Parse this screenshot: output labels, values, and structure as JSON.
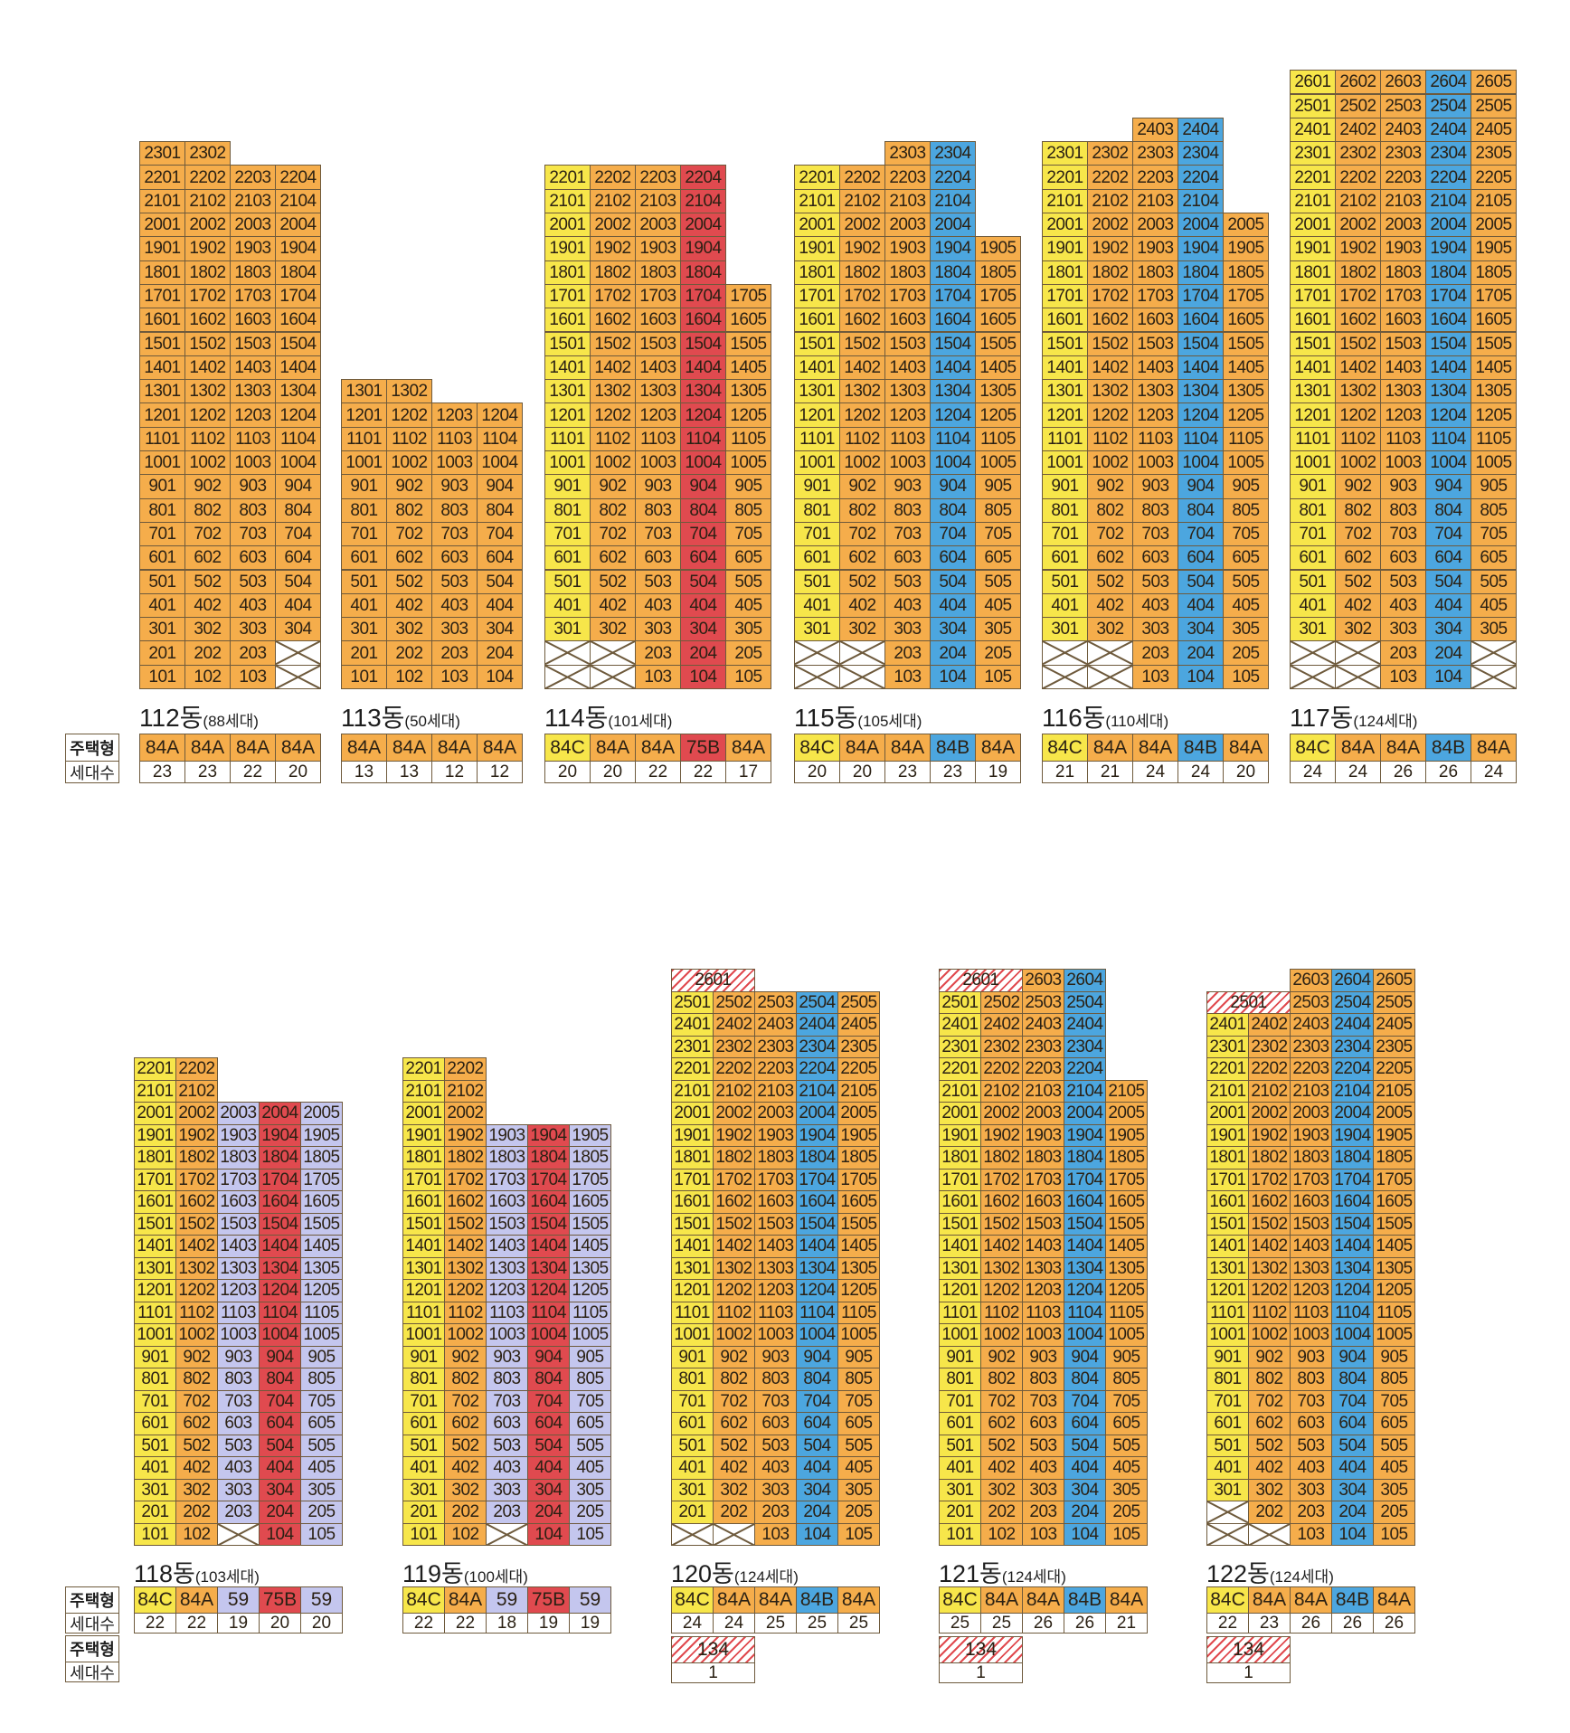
{
  "colors": {
    "84A": "#f5ad4b",
    "84B": "#4ca6df",
    "84C": "#f7e64a",
    "75B": "#e04a4f",
    "59": "#c4c6ee",
    "134": "#e04a4f"
  },
  "row_labels": {
    "type": "주택형",
    "count": "세대수"
  },
  "buildings": [
    {
      "id": "112",
      "name": "112동",
      "households": "(88세대)",
      "lines": [
        {
          "type": "84A",
          "count": "23",
          "floors": [
            1,
            23
          ]
        },
        {
          "type": "84A",
          "count": "23",
          "floors": [
            1,
            23
          ]
        },
        {
          "type": "84A",
          "count": "22",
          "floors": [
            1,
            22
          ]
        },
        {
          "type": "84A",
          "count": "20",
          "floors": [
            3,
            22
          ],
          "crossed": [
            1,
            2
          ]
        }
      ]
    },
    {
      "id": "113",
      "name": "113동",
      "households": "(50세대)",
      "lines": [
        {
          "type": "84A",
          "count": "13",
          "floors": [
            1,
            13
          ]
        },
        {
          "type": "84A",
          "count": "13",
          "floors": [
            1,
            13
          ]
        },
        {
          "type": "84A",
          "count": "12",
          "floors": [
            1,
            12
          ]
        },
        {
          "type": "84A",
          "count": "12",
          "floors": [
            1,
            12
          ]
        }
      ]
    },
    {
      "id": "114",
      "name": "114동",
      "households": "(101세대)",
      "lines": [
        {
          "type": "84C",
          "count": "20",
          "floors": [
            3,
            22
          ],
          "crossed": [
            1,
            2
          ]
        },
        {
          "type": "84A",
          "count": "20",
          "floors": [
            3,
            22
          ],
          "crossed": [
            1,
            2
          ]
        },
        {
          "type": "84A",
          "count": "22",
          "floors": [
            1,
            22
          ]
        },
        {
          "type": "75B",
          "count": "22",
          "floors": [
            1,
            22
          ]
        },
        {
          "type": "84A",
          "count": "17",
          "floors": [
            1,
            17
          ]
        }
      ]
    },
    {
      "id": "115",
      "name": "115동",
      "households": "(105세대)",
      "lines": [
        {
          "type": "84C",
          "count": "20",
          "floors": [
            3,
            22
          ],
          "crossed": [
            1,
            2
          ]
        },
        {
          "type": "84A",
          "count": "20",
          "floors": [
            3,
            22
          ],
          "crossed": [
            1,
            2
          ]
        },
        {
          "type": "84A",
          "count": "23",
          "floors": [
            1,
            23
          ]
        },
        {
          "type": "84B",
          "count": "23",
          "floors": [
            1,
            23
          ]
        },
        {
          "type": "84A",
          "count": "19",
          "floors": [
            1,
            19
          ]
        }
      ]
    },
    {
      "id": "116",
      "name": "116동",
      "households": "(110세대)",
      "lines": [
        {
          "type": "84C",
          "count": "21",
          "floors": [
            3,
            23
          ],
          "crossed": [
            1,
            2
          ]
        },
        {
          "type": "84A",
          "count": "21",
          "floors": [
            3,
            23
          ],
          "crossed": [
            1,
            2
          ]
        },
        {
          "type": "84A",
          "count": "24",
          "floors": [
            1,
            24
          ]
        },
        {
          "type": "84B",
          "count": "24",
          "floors": [
            1,
            24
          ]
        },
        {
          "type": "84A",
          "count": "20",
          "floors": [
            1,
            20
          ]
        }
      ]
    },
    {
      "id": "117",
      "name": "117동",
      "households": "(124세대)",
      "lines": [
        {
          "type": "84C",
          "count": "24",
          "floors": [
            3,
            26
          ],
          "crossed": [
            1,
            2
          ]
        },
        {
          "type": "84A",
          "count": "24",
          "floors": [
            3,
            26
          ],
          "crossed": [
            1,
            2
          ]
        },
        {
          "type": "84A",
          "count": "26",
          "floors": [
            1,
            26
          ]
        },
        {
          "type": "84B",
          "count": "26",
          "floors": [
            1,
            26
          ]
        },
        {
          "type": "84A",
          "count": "24",
          "floors": [
            3,
            26
          ],
          "crossed": [
            1,
            2
          ]
        }
      ]
    },
    {
      "id": "118",
      "name": "118동",
      "households": "(103세대)",
      "lines": [
        {
          "type": "84C",
          "count": "22",
          "floors": [
            1,
            22
          ]
        },
        {
          "type": "84A",
          "count": "22",
          "floors": [
            1,
            22
          ]
        },
        {
          "type": "59",
          "count": "19",
          "floors": [
            2,
            20
          ],
          "crossed": [
            1
          ]
        },
        {
          "type": "75B",
          "count": "20",
          "floors": [
            1,
            20
          ]
        },
        {
          "type": "59",
          "count": "20",
          "floors": [
            1,
            20
          ]
        }
      ]
    },
    {
      "id": "119",
      "name": "119동",
      "households": "(100세대)",
      "lines": [
        {
          "type": "84C",
          "count": "22",
          "floors": [
            1,
            22
          ]
        },
        {
          "type": "84A",
          "count": "22",
          "floors": [
            1,
            22
          ]
        },
        {
          "type": "59",
          "count": "18",
          "floors": [
            2,
            19
          ],
          "crossed": [
            1
          ]
        },
        {
          "type": "75B",
          "count": "19",
          "floors": [
            1,
            19
          ]
        },
        {
          "type": "59",
          "count": "19",
          "floors": [
            1,
            19
          ]
        }
      ]
    },
    {
      "id": "120",
      "name": "120동",
      "households": "(124세대)",
      "special": {
        "unit": "2601",
        "type": "134",
        "count": "1"
      },
      "lines": [
        {
          "type": "84C",
          "count": "24",
          "floors": [
            2,
            25
          ],
          "crossed": [
            1
          ]
        },
        {
          "type": "84A",
          "count": "24",
          "floors": [
            2,
            25
          ],
          "crossed": [
            1
          ]
        },
        {
          "type": "84A",
          "count": "25",
          "floors": [
            1,
            25
          ]
        },
        {
          "type": "84B",
          "count": "25",
          "floors": [
            1,
            25
          ]
        },
        {
          "type": "84A",
          "count": "25",
          "floors": [
            1,
            25
          ]
        }
      ]
    },
    {
      "id": "121",
      "name": "121동",
      "households": "(124세대)",
      "special": {
        "unit": "2601",
        "type": "134",
        "count": "1"
      },
      "lines": [
        {
          "type": "84C",
          "count": "25",
          "floors": [
            1,
            25
          ]
        },
        {
          "type": "84A",
          "count": "25",
          "floors": [
            1,
            25
          ]
        },
        {
          "type": "84A",
          "count": "26",
          "floors": [
            1,
            26
          ]
        },
        {
          "type": "84B",
          "count": "26",
          "floors": [
            1,
            26
          ]
        },
        {
          "type": "84A",
          "count": "21",
          "floors": [
            1,
            21
          ]
        }
      ]
    },
    {
      "id": "122",
      "name": "122동",
      "households": "(124세대)",
      "special": {
        "unit": "2501",
        "type": "134",
        "count": "1"
      },
      "lines": [
        {
          "type": "84C",
          "count": "22",
          "floors": [
            3,
            24
          ],
          "crossed": [
            1,
            2
          ]
        },
        {
          "type": "84A",
          "count": "23",
          "floors": [
            2,
            24
          ],
          "crossed": [
            1
          ]
        },
        {
          "type": "84A",
          "count": "26",
          "floors": [
            1,
            26
          ]
        },
        {
          "type": "84B",
          "count": "26",
          "floors": [
            1,
            26
          ]
        },
        {
          "type": "84A",
          "count": "26",
          "floors": [
            1,
            26
          ]
        }
      ]
    }
  ]
}
